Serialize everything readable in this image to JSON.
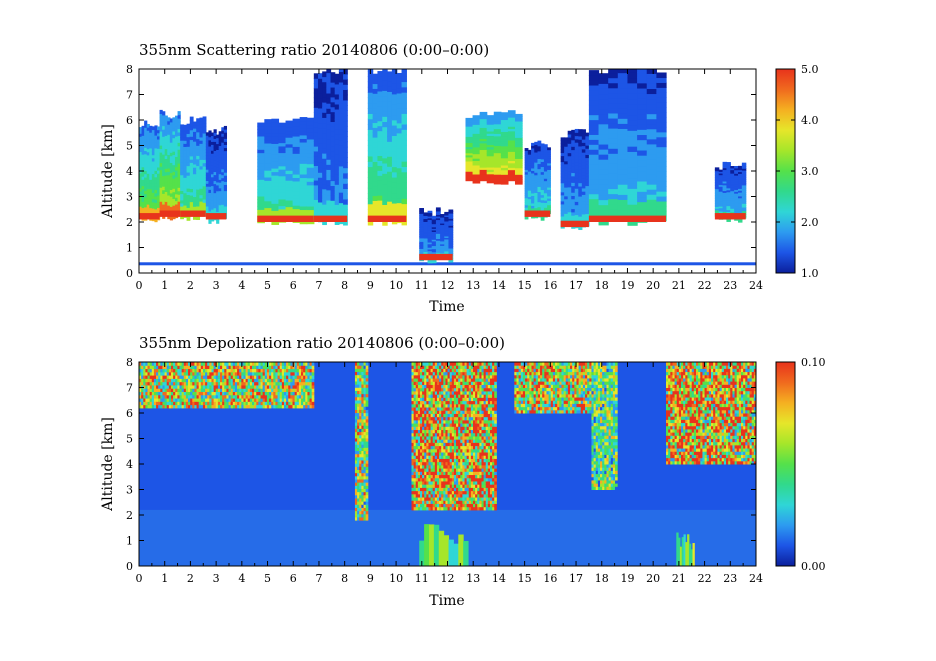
{
  "chart_data": [
    {
      "type": "heatmap",
      "title": "355nm Scattering ratio  20140806 (0:00–0:00)",
      "xlabel": "Time",
      "ylabel": "Altitude [km]",
      "xlim": [
        0,
        24
      ],
      "ylim": [
        0,
        8
      ],
      "x_ticks": [
        "0",
        "1",
        "2",
        "3",
        "4",
        "5",
        "6",
        "7",
        "8",
        "9",
        "10",
        "11",
        "12",
        "13",
        "14",
        "15",
        "16",
        "17",
        "18",
        "19",
        "20",
        "21",
        "22",
        "23",
        "24"
      ],
      "y_ticks": [
        "0",
        "1",
        "2",
        "3",
        "4",
        "5",
        "6",
        "7",
        "8"
      ],
      "colorbar": {
        "min": 1.0,
        "max": 5.0,
        "ticks": [
          "1.0",
          "2.0",
          "3.0",
          "4.0",
          "5.0"
        ]
      },
      "layers": [
        {
          "t_start": 0.0,
          "t_end": 0.8,
          "base_km": 2.1,
          "top_km": 5.8,
          "peak_value": 4.0
        },
        {
          "t_start": 0.8,
          "t_end": 1.6,
          "base_km": 2.2,
          "top_km": 6.2,
          "peak_value": 4.5
        },
        {
          "t_start": 1.6,
          "t_end": 2.6,
          "base_km": 2.2,
          "top_km": 6.0,
          "peak_value": 3.3
        },
        {
          "t_start": 2.6,
          "t_end": 3.4,
          "base_km": 2.1,
          "top_km": 5.6,
          "peak_value": 2.4
        },
        {
          "t_start": 4.6,
          "t_end": 6.8,
          "base_km": 2.0,
          "top_km": 6.0,
          "peak_value": 3.2
        },
        {
          "t_start": 6.8,
          "t_end": 8.1,
          "base_km": 2.0,
          "top_km": 8.0,
          "peak_value": 2.2
        },
        {
          "t_start": 8.9,
          "t_end": 10.4,
          "base_km": 2.0,
          "top_km": 8.0,
          "peak_value": 3.6
        },
        {
          "t_start": 10.9,
          "t_end": 12.2,
          "base_km": 0.5,
          "top_km": 2.4,
          "peak_value": 2.3
        },
        {
          "t_start": 12.7,
          "t_end": 14.9,
          "base_km": 3.6,
          "top_km": 6.2,
          "peak_value": 5.0
        },
        {
          "t_start": 15.0,
          "t_end": 16.0,
          "base_km": 2.2,
          "top_km": 5.0,
          "peak_value": 2.8
        },
        {
          "t_start": 16.4,
          "t_end": 17.5,
          "base_km": 1.8,
          "top_km": 5.5,
          "peak_value": 2.3
        },
        {
          "t_start": 17.5,
          "t_end": 20.5,
          "base_km": 2.0,
          "top_km": 8.0,
          "peak_value": 2.6
        },
        {
          "t_start": 22.4,
          "t_end": 23.6,
          "base_km": 2.1,
          "top_km": 4.2,
          "peak_value": 2.6
        }
      ]
    },
    {
      "type": "heatmap",
      "title": "355nm Depolization ratio  20140806 (0:00–0:00)",
      "xlabel": "Time",
      "ylabel": "Altitude [km]",
      "xlim": [
        0,
        24
      ],
      "ylim": [
        0,
        8
      ],
      "x_ticks": [
        "0",
        "1",
        "2",
        "3",
        "4",
        "5",
        "6",
        "7",
        "8",
        "9",
        "10",
        "11",
        "12",
        "13",
        "14",
        "15",
        "16",
        "17",
        "18",
        "19",
        "20",
        "21",
        "22",
        "23",
        "24"
      ],
      "y_ticks": [
        "0",
        "1",
        "2",
        "3",
        "4",
        "5",
        "6",
        "7",
        "8"
      ],
      "colorbar": {
        "min": 0.0,
        "max": 0.1,
        "ticks": [
          "0.00",
          "0.10"
        ]
      },
      "background_value": 0.015,
      "noise_regions": [
        {
          "t_start": 0.0,
          "t_end": 6.8,
          "base_km": 6.2,
          "top_km": 8.0,
          "value": 0.075
        },
        {
          "t_start": 8.4,
          "t_end": 8.9,
          "base_km": 1.8,
          "top_km": 8.0,
          "value": 0.07
        },
        {
          "t_start": 10.6,
          "t_end": 13.9,
          "base_km": 2.2,
          "top_km": 8.0,
          "value": 0.09
        },
        {
          "t_start": 14.6,
          "t_end": 17.6,
          "base_km": 6.0,
          "top_km": 8.0,
          "value": 0.08
        },
        {
          "t_start": 17.6,
          "t_end": 18.6,
          "base_km": 3.0,
          "top_km": 8.0,
          "value": 0.06
        },
        {
          "t_start": 20.5,
          "t_end": 24.0,
          "base_km": 4.0,
          "top_km": 8.0,
          "value": 0.09
        }
      ],
      "aerosol_plumes": [
        {
          "t_start": 10.9,
          "t_end": 12.8,
          "base_km": 0.0,
          "top_km": 1.5,
          "value": 0.05
        },
        {
          "t_start": 20.9,
          "t_end": 21.6,
          "base_km": 0.0,
          "top_km": 1.2,
          "value": 0.05
        }
      ]
    }
  ],
  "colors": {
    "palette": [
      "#0b1f9c",
      "#1d55e6",
      "#2d9bf0",
      "#2fd6d6",
      "#31d98c",
      "#55e14a",
      "#a6e62a",
      "#e6e62a",
      "#f5b021",
      "#f06a1e",
      "#e8331c"
    ]
  }
}
